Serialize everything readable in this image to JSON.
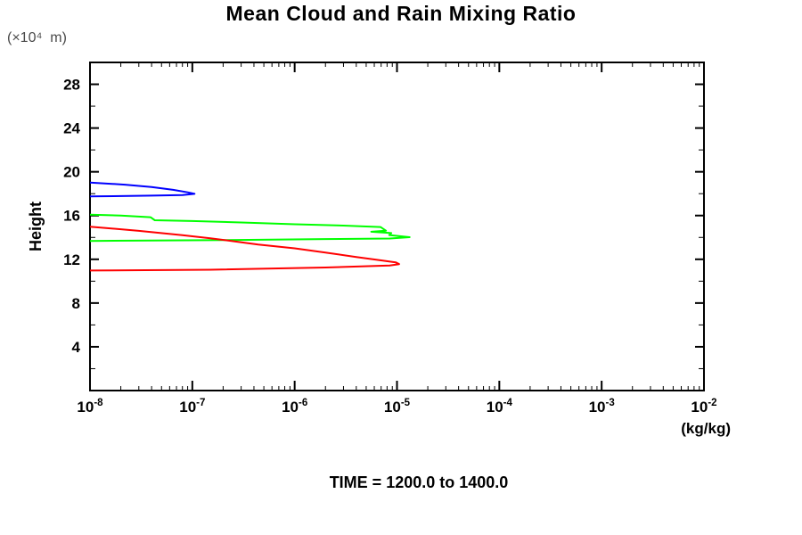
{
  "title": "Mean Cloud and Rain Mixing Ratio",
  "footer": "TIME = 1200.0 to 1400.0",
  "y_axis": {
    "label": "Height",
    "unit": "(×10⁴  m)",
    "major_ticks": [
      4,
      8,
      12,
      16,
      20,
      24,
      28
    ],
    "minor_ticks": [
      2,
      6,
      10,
      14,
      18,
      22,
      26,
      30
    ]
  },
  "x_axis": {
    "unit": "(kg/kg)",
    "tick_base": "10",
    "decade_exponents": [
      -8,
      -7,
      -6,
      -5,
      -4,
      -3,
      -2
    ]
  },
  "chart_data": {
    "type": "line",
    "title": "Mean Cloud and Rain Mixing Ratio",
    "xlabel": "(kg/kg)",
    "ylabel": "Height (×10⁴ m)",
    "xscale": "log",
    "xlim": [
      1e-08,
      0.01
    ],
    "ylim": [
      0,
      30
    ],
    "grid": false,
    "legend_position": "none",
    "annotation": "TIME = 1200.0 to 1400.0",
    "series": [
      {
        "name": "blue",
        "color": "#0000ff",
        "points": [
          [
            1e-08,
            19.02
          ],
          [
            2.2e-08,
            18.82
          ],
          [
            4e-08,
            18.6
          ],
          [
            6.5e-08,
            18.35
          ],
          [
            9e-08,
            18.12
          ],
          [
            1.05e-07,
            17.98
          ],
          [
            8e-08,
            17.88
          ],
          [
            4e-08,
            17.82
          ],
          [
            1e-08,
            17.75
          ]
        ]
      },
      {
        "name": "green",
        "color": "#00ff00",
        "points": [
          [
            1e-08,
            16.08
          ],
          [
            2e-08,
            16.0
          ],
          [
            3.9e-08,
            15.85
          ],
          [
            4.3e-08,
            15.57
          ],
          [
            1e-07,
            15.5
          ],
          [
            3e-07,
            15.37
          ],
          [
            1e-06,
            15.2
          ],
          [
            3e-06,
            15.08
          ],
          [
            6.9e-06,
            14.95
          ],
          [
            7.8e-06,
            14.62
          ],
          [
            5.6e-06,
            14.52
          ],
          [
            8.8e-06,
            14.4
          ],
          [
            8.4e-06,
            14.22
          ],
          [
            1.33e-05,
            14.02
          ],
          [
            8.5e-06,
            13.9
          ],
          [
            2e-06,
            13.85
          ],
          [
            2e-07,
            13.75
          ],
          [
            1e-08,
            13.68
          ]
        ]
      },
      {
        "name": "red",
        "color": "#ff0000",
        "points": [
          [
            1e-08,
            14.98
          ],
          [
            3e-08,
            14.6
          ],
          [
            8e-08,
            14.2
          ],
          [
            1.5e-07,
            13.92
          ],
          [
            4.4e-07,
            13.35
          ],
          [
            1e-06,
            13.0
          ],
          [
            2e-06,
            12.62
          ],
          [
            4e-06,
            12.2
          ],
          [
            7e-06,
            11.9
          ],
          [
            9.7e-06,
            11.72
          ],
          [
            1.05e-05,
            11.56
          ],
          [
            8.5e-06,
            11.43
          ],
          [
            2e-06,
            11.25
          ],
          [
            1.5e-07,
            11.05
          ],
          [
            1e-08,
            10.97
          ]
        ]
      }
    ]
  }
}
